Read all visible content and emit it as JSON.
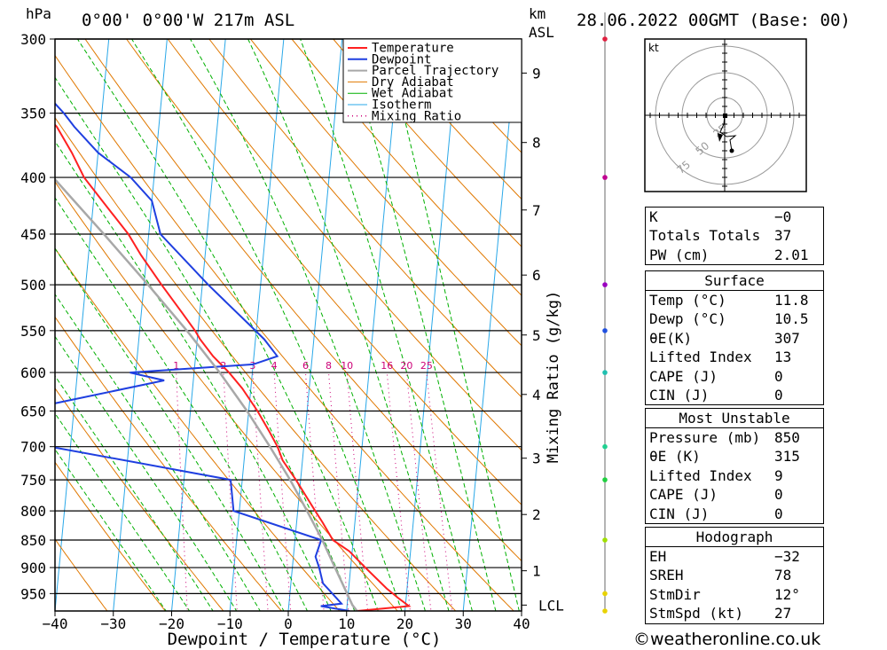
{
  "header": {
    "pressure_unit": "hPa",
    "location": "0°00' 0°00'W 217m ASL",
    "km_label": "km",
    "asl_label": "ASL",
    "datetime": "28.06.2022 00GMT (Base: 00)"
  },
  "chart_data": {
    "type": "line",
    "title": "",
    "xlabel": "Dewpoint / Temperature (°C)",
    "ylabel": "hPa",
    "right_axis_label": "Mixing Ratio (g/kg)",
    "xlim": [
      -40,
      40
    ],
    "ylim": [
      985,
      300
    ],
    "x_ticks": [
      -40,
      -30,
      -20,
      -10,
      0,
      10,
      20,
      30,
      40
    ],
    "x_tick_labels": [
      "−40",
      "−30",
      "−20",
      "−10",
      "0",
      "10",
      "20",
      "30",
      "40"
    ],
    "pressure_ticks": [
      300,
      350,
      400,
      450,
      500,
      550,
      600,
      650,
      700,
      750,
      800,
      850,
      900,
      950
    ],
    "km_ticks": [
      {
        "km": 1,
        "p": 906
      },
      {
        "km": 2,
        "p": 806
      },
      {
        "km": 3,
        "p": 717
      },
      {
        "km": 4,
        "p": 628
      },
      {
        "km": 5,
        "p": 555
      },
      {
        "km": 6,
        "p": 490
      },
      {
        "km": 7,
        "p": 428
      },
      {
        "km": 8,
        "p": 372
      },
      {
        "km": 9,
        "p": 322
      }
    ],
    "lcl": {
      "label": "LCL",
      "p": 973
    },
    "mixing_ratio_labels": [
      {
        "label": "1",
        "value": 1
      },
      {
        "label": "2",
        "value": 2
      },
      {
        "label": "3",
        "value": 3
      },
      {
        "label": "4",
        "value": 4
      },
      {
        "label": "6",
        "value": 6
      },
      {
        "label": "8",
        "value": 8
      },
      {
        "label": "10",
        "value": 10
      },
      {
        "label": "16",
        "value": 16
      },
      {
        "label": "20",
        "value": 20
      },
      {
        "label": "25",
        "value": 25
      }
    ],
    "mixing_ratio_label_pressure": 600,
    "series": [
      {
        "name": "Temperature",
        "color": "#ff2020",
        "points": [
          [
            985,
            11.8
          ],
          [
            975,
            20.6
          ],
          [
            960,
            18.8
          ],
          [
            940,
            16.5
          ],
          [
            900,
            12.5
          ],
          [
            870,
            9.5
          ],
          [
            850,
            6.5
          ],
          [
            820,
            4.5
          ],
          [
            800,
            3.0
          ],
          [
            780,
            1.5
          ],
          [
            750,
            -0.8
          ],
          [
            720,
            -3.4
          ],
          [
            700,
            -4.5
          ],
          [
            680,
            -6.0
          ],
          [
            650,
            -8.5
          ],
          [
            620,
            -11.5
          ],
          [
            600,
            -14.0
          ],
          [
            580,
            -17.0
          ],
          [
            560,
            -19.5
          ],
          [
            550,
            -20.5
          ],
          [
            530,
            -23.0
          ],
          [
            500,
            -27.0
          ],
          [
            470,
            -31.0
          ],
          [
            450,
            -33.5
          ],
          [
            420,
            -38.5
          ],
          [
            400,
            -42.0
          ],
          [
            380,
            -44.5
          ],
          [
            360,
            -47.5
          ],
          [
            350,
            -50.0
          ],
          [
            320,
            -54.5
          ],
          [
            300,
            -57.0
          ]
        ]
      },
      {
        "name": "Dewpoint",
        "color": "#1f3fe0",
        "points": [
          [
            985,
            10.5
          ],
          [
            975,
            5.5
          ],
          [
            970,
            9.0
          ],
          [
            930,
            5.5
          ],
          [
            900,
            4.6
          ],
          [
            880,
            3.8
          ],
          [
            850,
            4.5
          ],
          [
            800,
            -11.0
          ],
          [
            750,
            -12.0
          ],
          [
            700,
            -43.5
          ],
          [
            670,
            -45.0
          ],
          [
            650,
            -49.5
          ],
          [
            610,
            -25.0
          ],
          [
            600,
            -31.0
          ],
          [
            590,
            -10.0
          ],
          [
            580,
            -6.0
          ],
          [
            560,
            -8.5
          ],
          [
            545,
            -11.0
          ],
          [
            500,
            -19.0
          ],
          [
            450,
            -28.0
          ],
          [
            420,
            -30.0
          ],
          [
            400,
            -34.0
          ],
          [
            380,
            -40.0
          ],
          [
            360,
            -44.5
          ],
          [
            350,
            -46.5
          ],
          [
            320,
            -54.0
          ],
          [
            300,
            -60.5
          ]
        ]
      },
      {
        "name": "Parcel Trajectory",
        "color": "#a8a8a8",
        "points": [
          [
            985,
            11.8
          ],
          [
            973,
            10.9
          ],
          [
            950,
            9.8
          ],
          [
            900,
            7.3
          ],
          [
            850,
            4.7
          ],
          [
            800,
            1.6
          ],
          [
            750,
            -1.8
          ],
          [
            700,
            -5.8
          ],
          [
            650,
            -10.3
          ],
          [
            600,
            -15.6
          ],
          [
            550,
            -21.9
          ],
          [
            500,
            -29.3
          ],
          [
            450,
            -37.7
          ],
          [
            400,
            -47.3
          ],
          [
            350,
            -58.2
          ],
          [
            310,
            -68.0
          ]
        ]
      }
    ],
    "legend": [
      "Temperature",
      "Dewpoint",
      "Parcel Trajectory",
      "Dry Adiabat",
      "Wet Adiabat",
      "Isotherm",
      "Mixing Ratio"
    ],
    "legend_position": "top-right",
    "colors": {
      "temperature": "#ff2020",
      "dewpoint": "#1f3fe0",
      "parcel": "#a8a8a8",
      "dry_adiabat": "#e07800",
      "wet_adiabat": "#00b000",
      "isotherm": "#2aa8e8",
      "mixing_ratio": "#cc0077"
    }
  },
  "wind_profile": {
    "levels": [
      {
        "p": 985,
        "color": "#e8d200"
      },
      {
        "p": 950,
        "color": "#e8d200"
      },
      {
        "p": 850,
        "color": "#a0e000"
      },
      {
        "p": 750,
        "color": "#20d040"
      },
      {
        "p": 700,
        "color": "#20d090"
      },
      {
        "p": 600,
        "color": "#20c0b0"
      },
      {
        "p": 550,
        "color": "#2050e0"
      },
      {
        "p": 500,
        "color": "#9a00c0"
      },
      {
        "p": 400,
        "color": "#c00090"
      },
      {
        "p": 300,
        "color": "#e02040"
      }
    ]
  },
  "hodograph": {
    "unit_label": "kt",
    "ring_labels": [
      "25",
      "50",
      "75"
    ]
  },
  "indices_box": {
    "rows": [
      {
        "label": "K",
        "value": "−0"
      },
      {
        "label": "Totals Totals",
        "value": "37"
      },
      {
        "label": "PW (cm)",
        "value": "2.01"
      }
    ]
  },
  "surface_box": {
    "title": "Surface",
    "rows": [
      {
        "label": "Temp (°C)",
        "value": "11.8"
      },
      {
        "label": "Dewp (°C)",
        "value": "10.5"
      },
      {
        "label": "θE(K)",
        "value": "307"
      },
      {
        "label": "Lifted Index",
        "value": "13"
      },
      {
        "label": "CAPE (J)",
        "value": "0"
      },
      {
        "label": "CIN (J)",
        "value": "0"
      }
    ]
  },
  "unstable_box": {
    "title": "Most Unstable",
    "rows": [
      {
        "label": "Pressure (mb)",
        "value": "850"
      },
      {
        "label": "θE (K)",
        "value": "315"
      },
      {
        "label": "Lifted Index",
        "value": "9"
      },
      {
        "label": "CAPE (J)",
        "value": "0"
      },
      {
        "label": "CIN (J)",
        "value": "0"
      }
    ]
  },
  "hodo_box": {
    "title": "Hodograph",
    "rows": [
      {
        "label": "EH",
        "value": "−32"
      },
      {
        "label": "SREH",
        "value": "78"
      },
      {
        "label": "StmDir",
        "value": "12°"
      },
      {
        "label": "StmSpd (kt)",
        "value": "27"
      }
    ]
  },
  "credit": "©weatheronline.co.uk"
}
